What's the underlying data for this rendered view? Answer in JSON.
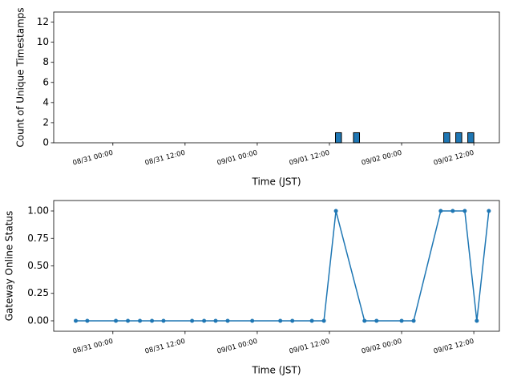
{
  "chart_data": [
    {
      "type": "bar",
      "xlabel": "Time (JST)",
      "ylabel": "Count of Unique Timestamps",
      "x": [
        "09/01 13:00",
        "09/01 16:00",
        "09/02 07:00",
        "09/02 09:00",
        "09/02 11:00"
      ],
      "values": [
        1,
        1,
        1,
        1,
        1
      ],
      "bar_width_hours": 1,
      "color": "#1f77b4",
      "xlim": [
        "08/30 14:10",
        "09/02 16:15"
      ],
      "xticks": [
        "08/31 00:00",
        "08/31 12:00",
        "09/01 00:00",
        "09/01 12:00",
        "09/02 00:00",
        "09/02 12:00"
      ],
      "ylim": [
        0,
        13
      ],
      "yticks": [
        0,
        2,
        4,
        6,
        8,
        10,
        12
      ]
    },
    {
      "type": "line",
      "xlabel": "Time (JST)",
      "ylabel": "Gateway Online Status",
      "x": [
        "08/30 17:50",
        "08/30 19:45",
        "08/31 00:30",
        "08/31 02:30",
        "08/31 04:30",
        "08/31 06:30",
        "08/31 08:25",
        "08/31 13:10",
        "08/31 15:10",
        "08/31 17:05",
        "08/31 19:05",
        "08/31 23:10",
        "09/01 03:50",
        "09/01 05:50",
        "09/01 09:05",
        "09/01 11:05",
        "09/01 13:05",
        "09/01 17:50",
        "09/01 19:50",
        "09/02 00:00",
        "09/02 02:00",
        "09/02 06:30",
        "09/02 08:30",
        "09/02 10:30",
        "09/02 12:30",
        "09/02 14:30"
      ],
      "values": [
        0,
        0,
        0,
        0,
        0,
        0,
        0,
        0,
        0,
        0,
        0,
        0,
        0,
        0,
        0,
        0,
        1,
        0,
        0,
        0,
        0,
        1,
        1,
        1,
        0,
        1
      ],
      "color": "#1f77b4",
      "xlim": [
        "08/30 14:10",
        "09/02 16:15"
      ],
      "xticks": [
        "08/31 00:00",
        "08/31 12:00",
        "09/01 00:00",
        "09/01 12:00",
        "09/02 00:00",
        "09/02 12:00"
      ],
      "ylim": [
        -0.095,
        1.095
      ],
      "yticks": [
        {
          "value": 0,
          "label": "0.00"
        },
        {
          "value": 0.25,
          "label": "0.25"
        },
        {
          "value": 0.5,
          "label": "0.50"
        },
        {
          "value": 0.75,
          "label": "0.75"
        },
        {
          "value": 1,
          "label": "1.00"
        }
      ]
    }
  ]
}
